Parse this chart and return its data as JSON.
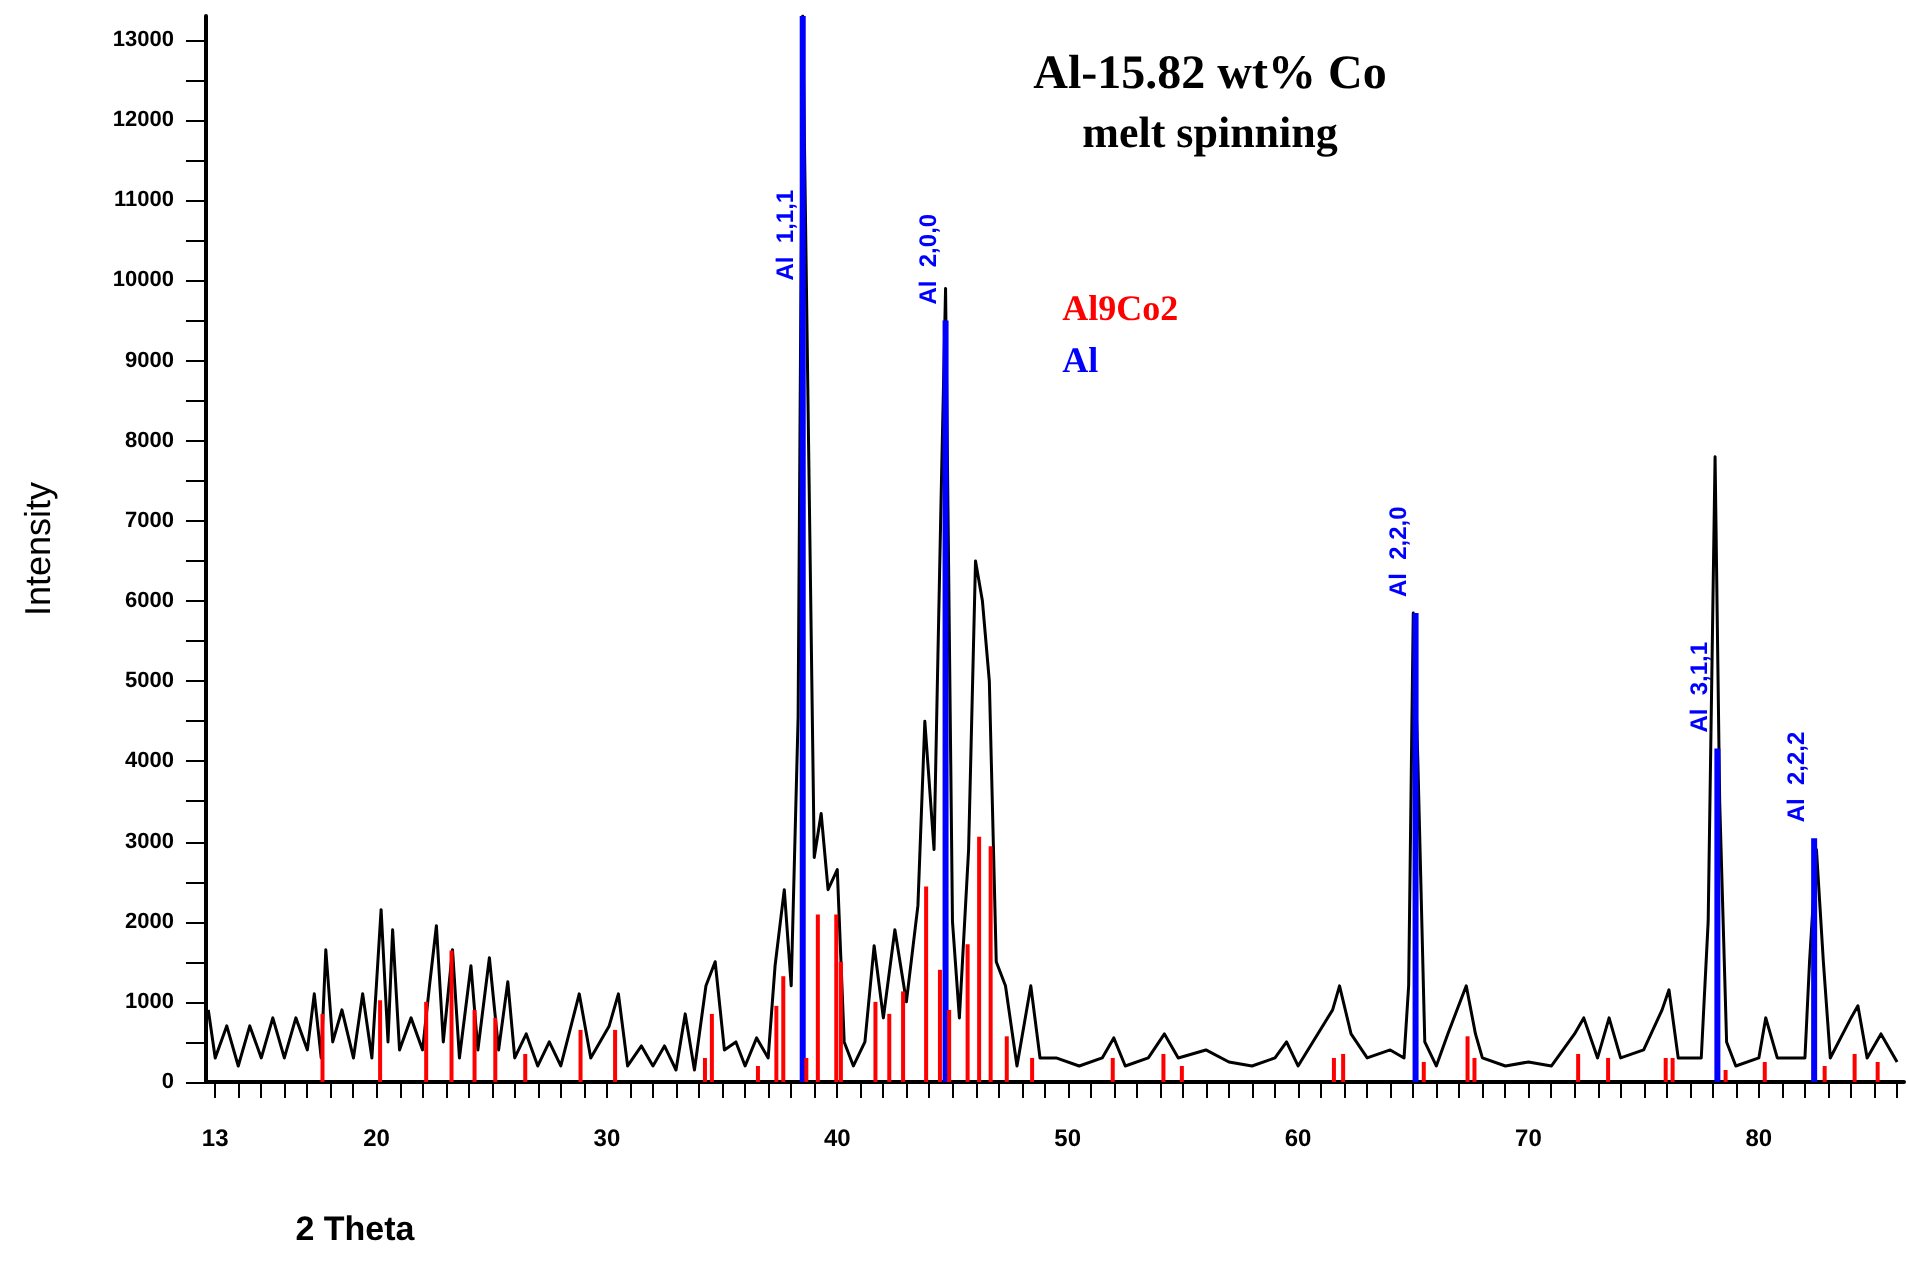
{
  "chart_data": {
    "type": "line",
    "title": "Al-15.82 wt% Co",
    "subtitle": "melt spinning",
    "xlabel": "2 Theta",
    "ylabel": "Intensity",
    "xlim": [
      12.6,
      86.3
    ],
    "xticks": [
      13,
      20,
      30,
      40,
      50,
      60,
      70,
      80
    ],
    "ylim": [
      0,
      13300
    ],
    "yticks": [
      0,
      1000,
      2000,
      3000,
      4000,
      5000,
      6000,
      7000,
      8000,
      9000,
      10000,
      11000,
      12000,
      13000
    ],
    "grid": false,
    "legend": "top",
    "marker": "none",
    "line_style": "solid",
    "series": [
      {
        "color": "#000000",
        "x": [
          12.7,
          13.0,
          13.5,
          14,
          14.5,
          15,
          15.5,
          16,
          16.5,
          17,
          17.3,
          17.6,
          17.8,
          18.1,
          18.5,
          19,
          19.4,
          19.8,
          20.2,
          20.5,
          20.7,
          21,
          21.5,
          22,
          22.3,
          22.6,
          22.9,
          23.3,
          23.6,
          24.1,
          24.4,
          24.9,
          25.3,
          25.7,
          26,
          26.5,
          27,
          27.5,
          28,
          28.8,
          29.3,
          30.1,
          30.5,
          30.9,
          31.5,
          32,
          32.5,
          33,
          33.4,
          33.8,
          34.3,
          34.7,
          35.1,
          35.6,
          36,
          36.5,
          37,
          37.3,
          37.7,
          38,
          38.3,
          38.5,
          38.8,
          39.0,
          39.3,
          39.6,
          40.0,
          40.3,
          40.7,
          41.2,
          41.6,
          42,
          42.5,
          43,
          43.5,
          43.8,
          44.2,
          44.5,
          44.7,
          45.0,
          45.3,
          45.7,
          46.0,
          46.3,
          46.6,
          46.9,
          47.3,
          47.8,
          48.4,
          48.8,
          49.5,
          50.5,
          51.5,
          52,
          52.5,
          53.5,
          54.2,
          54.8,
          56,
          57,
          58,
          59,
          59.5,
          60,
          61.5,
          61.8,
          62.3,
          63,
          64,
          64.6,
          64.8,
          65.0,
          65.2,
          65.5,
          66,
          66.5,
          67.3,
          67.7,
          68,
          69,
          70,
          71,
          72,
          72.4,
          73,
          73.5,
          74,
          75,
          75.8,
          76.1,
          76.5,
          77.5,
          77.8,
          78.1,
          78.3,
          78.6,
          79,
          80,
          80.3,
          80.8,
          82,
          82.2,
          82.5,
          82.8,
          83.1,
          84,
          84.3,
          84.7,
          85.3,
          86
        ],
        "values": [
          900,
          300,
          700,
          200,
          700,
          300,
          800,
          300,
          800,
          400,
          1100,
          300,
          1650,
          500,
          900,
          300,
          1100,
          300,
          2150,
          500,
          1900,
          400,
          800,
          400,
          1200,
          1950,
          500,
          1650,
          300,
          1450,
          400,
          1550,
          400,
          1250,
          300,
          600,
          200,
          500,
          200,
          1100,
          300,
          700,
          1100,
          200,
          450,
          200,
          450,
          150,
          850,
          150,
          1200,
          1500,
          400,
          500,
          200,
          550,
          300,
          1450,
          2400,
          1200,
          4550,
          13300,
          7000,
          2800,
          3350,
          2400,
          2650,
          500,
          200,
          500,
          1700,
          800,
          1900,
          1000,
          2200,
          4500,
          2900,
          7200,
          9900,
          2000,
          800,
          2900,
          6500,
          6000,
          5000,
          1500,
          1200,
          200,
          1200,
          300,
          300,
          200,
          300,
          550,
          200,
          300,
          600,
          300,
          400,
          250,
          200,
          300,
          500,
          200,
          900,
          1200,
          600,
          300,
          400,
          300,
          1200,
          5850,
          4000,
          500,
          200,
          600,
          1200,
          600,
          300,
          200,
          250,
          200,
          600,
          800,
          300,
          800,
          300,
          400,
          900,
          1150,
          300,
          300,
          2000,
          7800,
          3500,
          500,
          200,
          300,
          800,
          300,
          300,
          1500,
          2900,
          1500,
          300,
          800,
          950,
          300,
          600,
          250
        ]
      },
      {
        "type": "bar",
        "name": "Al9Co2",
        "color": "#ff0000",
        "x": [
          17.7,
          20.2,
          22.2,
          23.3,
          24.3,
          25.2,
          26.5,
          28.9,
          30.4,
          34.3,
          34.6,
          36.6,
          37.4,
          37.7,
          38.7,
          39.2,
          40.0,
          40.2,
          41.7,
          42.3,
          42.9,
          43.9,
          44.5,
          44.9,
          45.7,
          46.1,
          46.2,
          46.7,
          47.4,
          48.5,
          52.0,
          54.2,
          55.0,
          61.6,
          62.0,
          65.5,
          67.4,
          67.7,
          72.2,
          73.5,
          76.0,
          76.3,
          78.6,
          80.3,
          82.9,
          84.2,
          85.2
        ],
        "values": [
          850,
          1020,
          1000,
          1640,
          900,
          800,
          350,
          650,
          650,
          300,
          850,
          200,
          950,
          1320,
          300,
          2090,
          2090,
          1500,
          1000,
          850,
          1130,
          2440,
          1400,
          900,
          1720,
          null,
          3060,
          2940,
          570,
          300,
          300,
          350,
          200,
          300,
          350,
          250,
          570,
          300,
          350,
          300,
          300,
          300,
          150,
          250,
          200,
          350,
          250
        ]
      },
      {
        "type": "bar",
        "name": "Al",
        "color": "#0000ff",
        "x": [
          38.5,
          44.7,
          65.1,
          78.2,
          82.4
        ],
        "values": [
          13300,
          9500,
          5850,
          4160,
          3040
        ]
      }
    ],
    "annotations": [
      {
        "text": "Al  1,1,1",
        "x": 38.5,
        "y": 9800
      },
      {
        "text": "Al  2,0,0",
        "x": 44.7,
        "y": 9500
      },
      {
        "text": "Al  2,2,0",
        "x": 65.1,
        "y": 5850
      },
      {
        "text": "Al  3,1,1",
        "x": 78.2,
        "y": 4160
      },
      {
        "text": "Al  2,2,2",
        "x": 82.4,
        "y": 3040
      }
    ]
  }
}
